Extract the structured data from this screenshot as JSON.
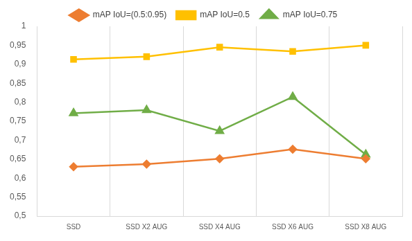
{
  "chart_data": {
    "type": "line",
    "categories": [
      "SSD",
      "SSD X2 AUG",
      "SSD X4 AUG",
      "SSD X6 AUG",
      "SSD X8 AUG"
    ],
    "series": [
      {
        "name": "mAP IoU=(0.5:0.95)",
        "color": "#ed7d31",
        "marker": "diamond",
        "values": [
          0.63,
          0.637,
          0.651,
          0.676,
          0.651
        ]
      },
      {
        "name": "mAP IoU=0.5",
        "color": "#ffc000",
        "marker": "square",
        "values": [
          0.913,
          0.92,
          0.945,
          0.934,
          0.95
        ]
      },
      {
        "name": "mAP IoU=0.75",
        "color": "#70ad47",
        "marker": "triangle",
        "values": [
          0.771,
          0.779,
          0.724,
          0.814,
          0.662
        ]
      }
    ],
    "ylim": [
      0.5,
      1
    ],
    "yticks": [
      {
        "value": 0.5,
        "label": "0,5"
      },
      {
        "value": 0.55,
        "label": "0,55"
      },
      {
        "value": 0.6,
        "label": "0,6"
      },
      {
        "value": 0.65,
        "label": "0,65"
      },
      {
        "value": 0.7,
        "label": "0,7"
      },
      {
        "value": 0.75,
        "label": "0,75"
      },
      {
        "value": 0.8,
        "label": "0,8"
      },
      {
        "value": 0.85,
        "label": "0,85"
      },
      {
        "value": 0.9,
        "label": "0,9"
      },
      {
        "value": 0.95,
        "label": "0,95"
      },
      1
    ],
    "grid": true,
    "legend": "top"
  }
}
